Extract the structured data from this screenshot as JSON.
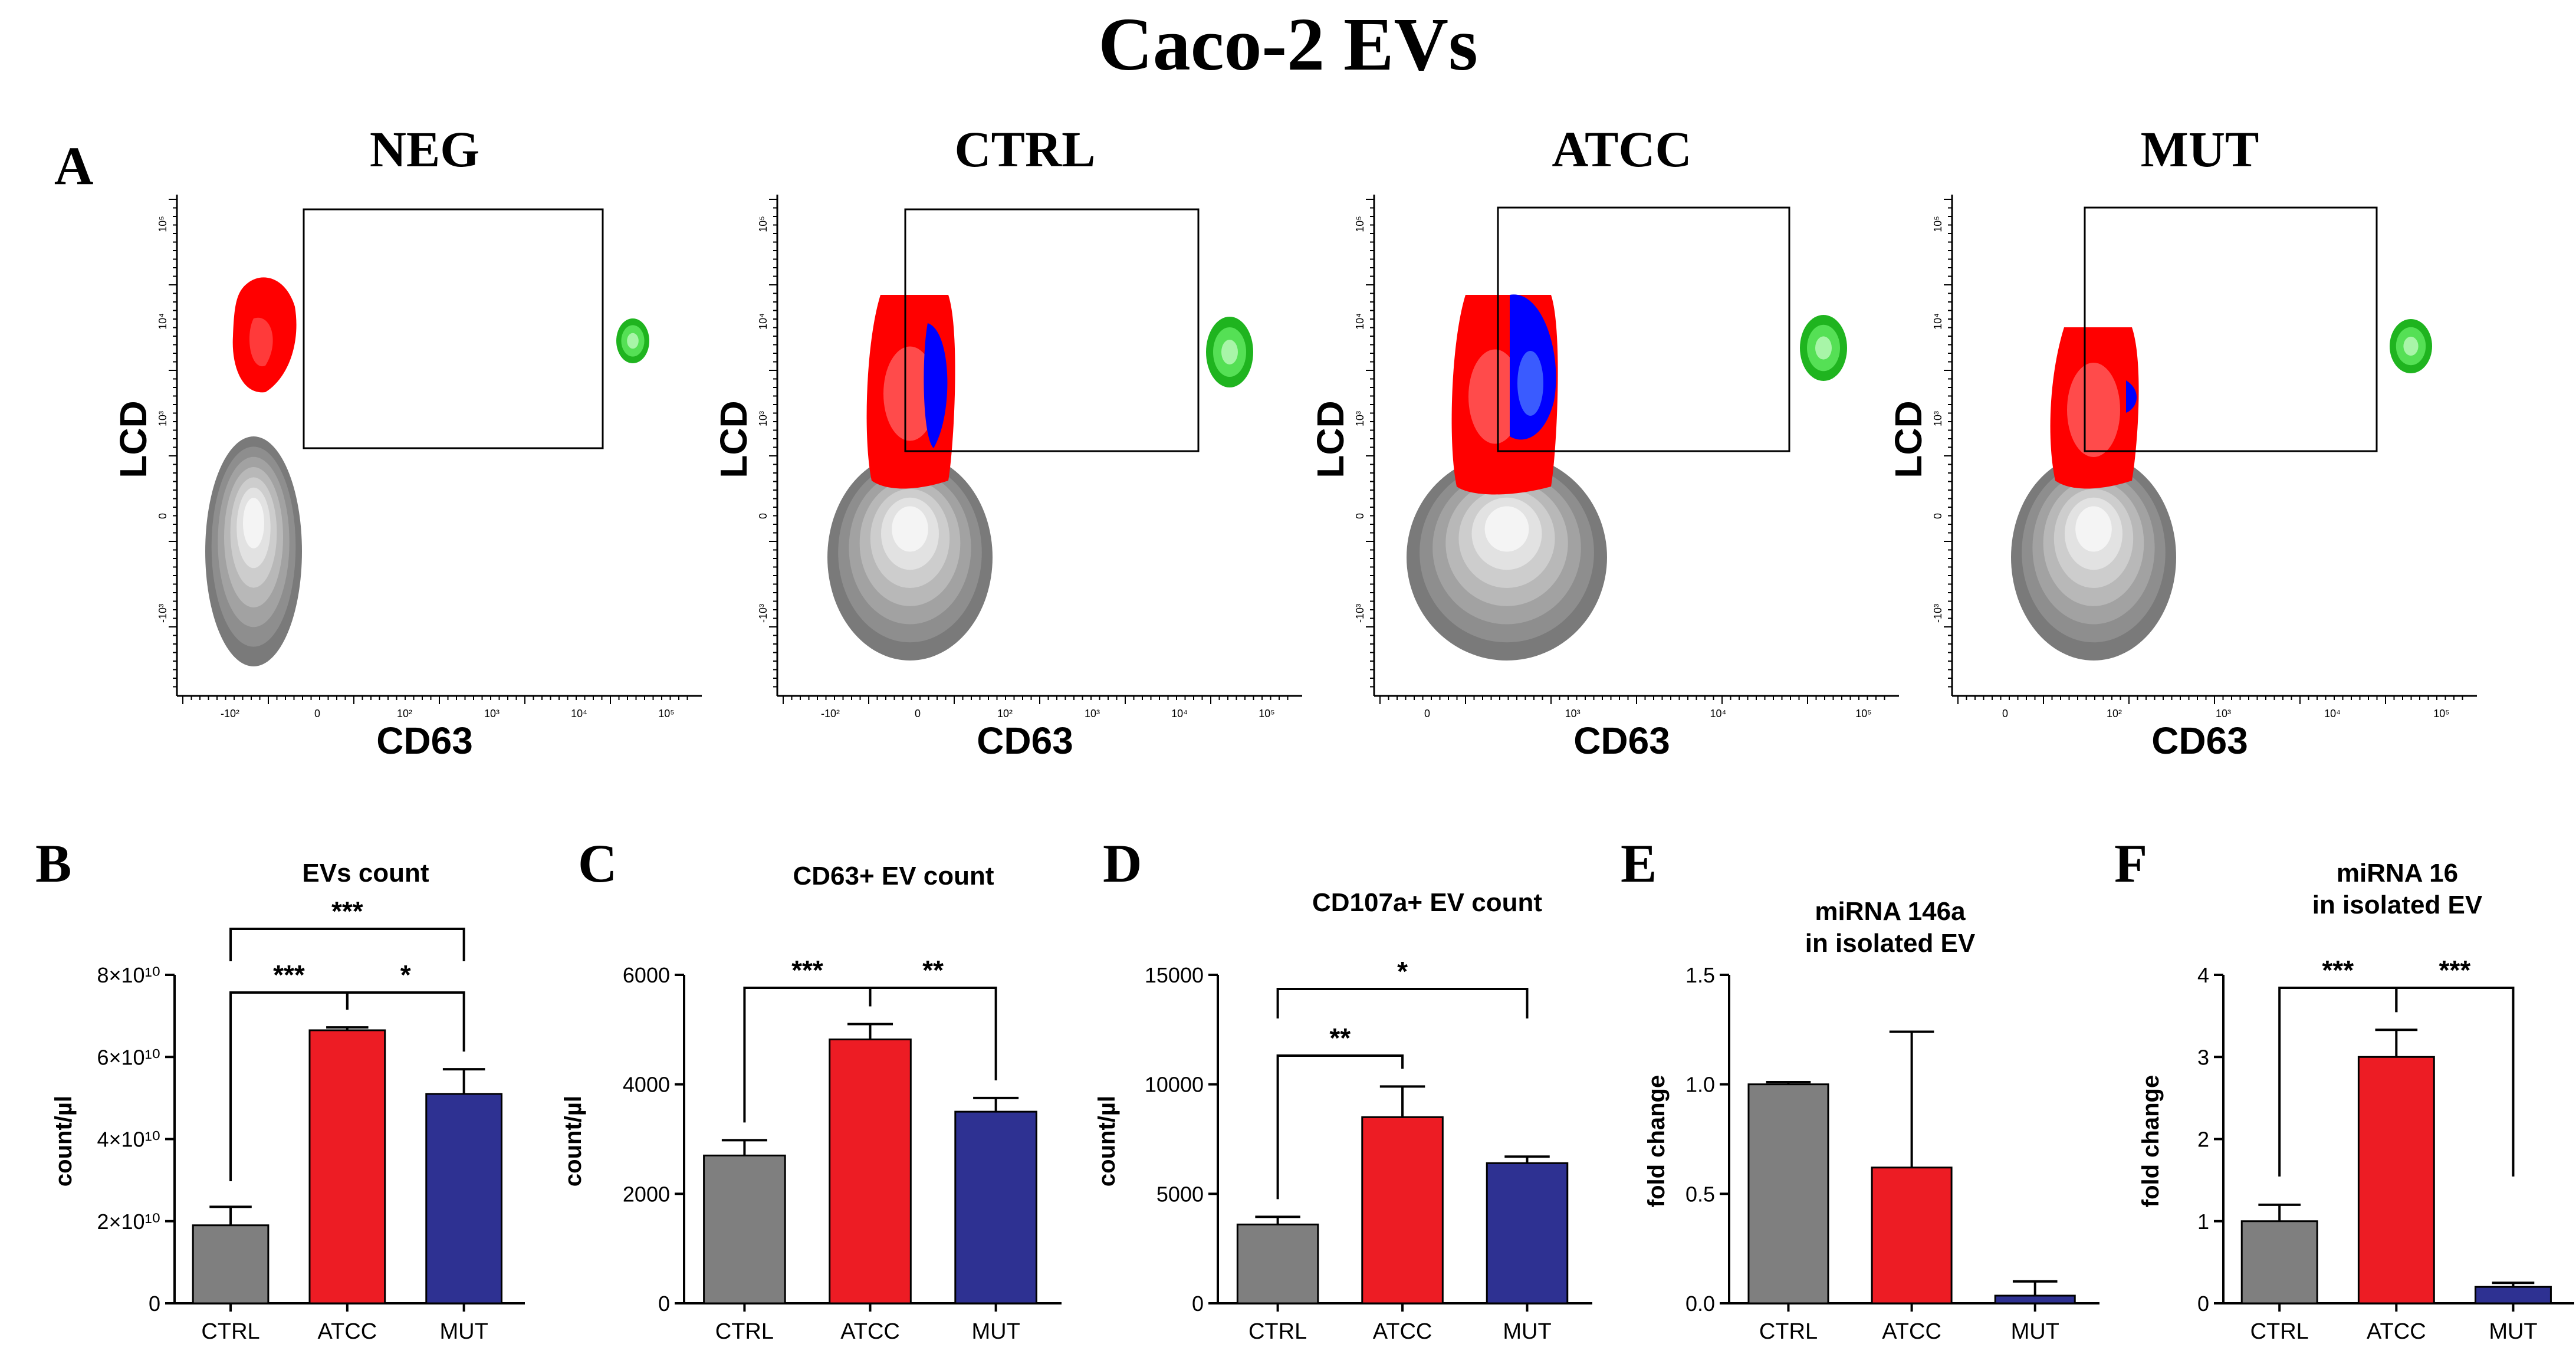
{
  "title": "Caco-2 EVs",
  "colors": {
    "CTRL": "#7f7f7f",
    "ATCC": "#ed1c24",
    "MUT": "#2e3192",
    "neg_population": "#ff0000",
    "pos_population": "#0000ff",
    "bead": "#22cc22"
  },
  "panel_A": {
    "letter": "A",
    "x_axis_label": "CD63",
    "y_axis_label": "LCD",
    "plots": [
      {
        "name": "NEG",
        "title": "NEG",
        "x_ticks": [
          "-10²",
          "0",
          "10²",
          "10³",
          "10⁴",
          "10⁵"
        ],
        "y_ticks": [
          "10⁵",
          "10⁴",
          "10³",
          "0",
          "-10³"
        ]
      },
      {
        "name": "CTRL",
        "title": "CTRL",
        "x_ticks": [
          "-10²",
          "0",
          "10²",
          "10³",
          "10⁴",
          "10⁵"
        ],
        "y_ticks": [
          "10⁵",
          "10⁴",
          "10³",
          "0",
          "-10³"
        ]
      },
      {
        "name": "ATCC",
        "title": "ATCC",
        "x_ticks": [
          "0",
          "10³",
          "10⁴",
          "10⁵"
        ],
        "y_ticks": [
          "10⁵",
          "10⁴",
          "10³",
          "0",
          "-10³"
        ]
      },
      {
        "name": "MUT",
        "title": "MUT",
        "x_ticks": [
          "0",
          "10²",
          "10³",
          "10⁴",
          "10⁵"
        ],
        "y_ticks": [
          "10⁵",
          "10⁴",
          "10³",
          "0",
          "-10³"
        ]
      }
    ]
  },
  "chart_data": [
    {
      "panel": "B",
      "type": "bar",
      "title": "EVs count",
      "categories": [
        "CTRL",
        "ATCC",
        "MUT"
      ],
      "values": [
        19000000000,
        66500000000,
        51000000000
      ],
      "errors": [
        4500000000,
        700000000,
        6000000000
      ],
      "ylabel": "count/µl",
      "xlabel": "",
      "ylim": [
        0,
        80000000000
      ],
      "y_ticks": [
        0,
        20000000000,
        40000000000,
        60000000000,
        80000000000
      ],
      "y_tick_labels": [
        "0",
        "2×10¹⁰",
        "4×10¹⁰",
        "6×10¹⁰",
        "8×10¹⁰"
      ],
      "significance": [
        {
          "from": 0,
          "to": 1,
          "label": "***",
          "level": 1
        },
        {
          "from": 1,
          "to": 2,
          "label": "*",
          "level": 1
        },
        {
          "from": 0,
          "to": 2,
          "label": "***",
          "level": 2
        }
      ]
    },
    {
      "panel": "C",
      "type": "bar",
      "title": "CD63+ EV count",
      "categories": [
        "CTRL",
        "ATCC",
        "MUT"
      ],
      "values": [
        2700,
        4820,
        3500
      ],
      "errors": [
        280,
        280,
        250
      ],
      "ylabel": "count/µl",
      "xlabel": "",
      "ylim": [
        0,
        6000
      ],
      "y_ticks": [
        0,
        2000,
        4000,
        6000
      ],
      "y_tick_labels": [
        "0",
        "2000",
        "4000",
        "6000"
      ],
      "significance": [
        {
          "from": 0,
          "to": 1,
          "label": "***",
          "level": 1
        },
        {
          "from": 1,
          "to": 2,
          "label": "**",
          "level": 1
        }
      ]
    },
    {
      "panel": "D",
      "type": "bar",
      "title": "CD107a+ EV count",
      "categories": [
        "CTRL",
        "ATCC",
        "MUT"
      ],
      "values": [
        3600,
        8500,
        6400
      ],
      "errors": [
        350,
        1400,
        300
      ],
      "ylabel": "count/µl",
      "xlabel": "",
      "ylim": [
        0,
        15000
      ],
      "y_ticks": [
        0,
        5000,
        10000,
        15000
      ],
      "y_tick_labels": [
        "0",
        "5000",
        "10000",
        "15000"
      ],
      "significance": [
        {
          "from": 0,
          "to": 1,
          "label": "**",
          "level": 1
        },
        {
          "from": 0,
          "to": 2,
          "label": "*",
          "level": 2
        }
      ]
    },
    {
      "panel": "E",
      "type": "bar",
      "title": "miRNA 146a\nin isolated EV",
      "categories": [
        "CTRL",
        "ATCC",
        "MUT"
      ],
      "values": [
        1.0,
        0.62,
        0.035
      ],
      "errors": [
        0.01,
        0.62,
        0.065
      ],
      "ylabel": "fold change",
      "xlabel": "",
      "ylim": [
        0,
        1.5
      ],
      "y_ticks": [
        0,
        0.5,
        1.0,
        1.5
      ],
      "y_tick_labels": [
        "0.0",
        "0.5",
        "1.0",
        "1.5"
      ],
      "significance": []
    },
    {
      "panel": "F",
      "type": "bar",
      "title": "miRNA 16\nin isolated EV",
      "categories": [
        "CTRL",
        "ATCC",
        "MUT"
      ],
      "values": [
        1.0,
        3.0,
        0.2
      ],
      "errors": [
        0.2,
        0.33,
        0.05
      ],
      "ylabel": "fold change",
      "xlabel": "",
      "ylim": [
        0,
        4
      ],
      "y_ticks": [
        0,
        1,
        2,
        3,
        4
      ],
      "y_tick_labels": [
        "0",
        "1",
        "2",
        "3",
        "4"
      ],
      "significance": [
        {
          "from": 0,
          "to": 1,
          "label": "***",
          "level": 1
        },
        {
          "from": 1,
          "to": 2,
          "label": "***",
          "level": 1
        }
      ]
    }
  ]
}
